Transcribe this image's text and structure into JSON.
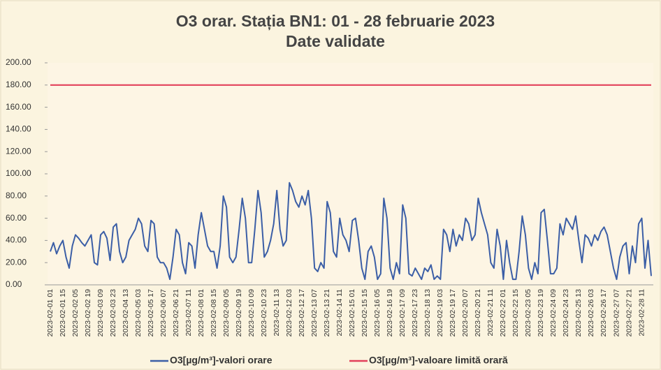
{
  "chart_data": {
    "type": "line",
    "title": "O3 orar. Stația BN1: 01 - 28 februarie 2023",
    "subtitle": "Date validate",
    "categories": [
      "2023-02-01 01",
      null,
      null,
      null,
      "2023-02-01 15",
      null,
      null,
      null,
      "2023-02-02 05",
      null,
      null,
      null,
      "2023-02-02 19",
      null,
      null,
      null,
      "2023-02-03 09",
      null,
      null,
      null,
      "2023-02-03 23",
      null,
      null,
      null,
      "2023-02-04 13",
      null,
      null,
      null,
      "2023-02-05 03",
      null,
      null,
      null,
      "2023-02-05 17",
      null,
      null,
      null,
      "2023-02-06 07",
      null,
      null,
      null,
      "2023-02-06 21",
      null,
      null,
      null,
      "2023-02-07 11",
      null,
      null,
      null,
      "2023-02-08 01",
      null,
      null,
      null,
      "2023-02-08 15",
      null,
      null,
      null,
      "2023-02-09 05",
      null,
      null,
      null,
      "2023-02-09 19",
      null,
      null,
      null,
      "2023-02-10 09",
      null,
      null,
      null,
      "2023-02-10 23",
      null,
      null,
      null,
      "2023-02-11 13",
      null,
      null,
      null,
      "2023-02-12 03",
      null,
      null,
      null,
      "2023-02-12 17",
      null,
      null,
      null,
      "2023-02-13 07",
      null,
      null,
      null,
      "2023-02-13 21",
      null,
      null,
      null,
      "2023-02-14 11",
      null,
      null,
      null,
      "2023-02-15 01",
      null,
      null,
      null,
      "2023-02-15 15",
      null,
      null,
      null,
      "2023-02-16 05",
      null,
      null,
      null,
      "2023-02-16 19",
      null,
      null,
      null,
      "2023-02-17 09",
      null,
      null,
      null,
      "2023-02-17 23",
      null,
      null,
      null,
      "2023-02-18 13",
      null,
      null,
      null,
      "2023-02-19 03",
      null,
      null,
      null,
      "2023-02-19 17",
      null,
      null,
      null,
      "2023-02-20 07",
      null,
      null,
      null,
      "2023-02-20 21",
      null,
      null,
      null,
      "2023-02-21 11",
      null,
      null,
      null,
      "2023-02-22 01",
      null,
      null,
      null,
      "2023-02-22 15",
      null,
      null,
      null,
      "2023-02-23 05",
      null,
      null,
      null,
      "2023-02-23 19",
      null,
      null,
      null,
      "2023-02-24 09",
      null,
      null,
      null,
      "2023-02-24 23",
      null,
      null,
      null,
      "2023-02-25 13",
      null,
      null,
      null,
      "2023-02-26 03",
      null,
      null,
      null,
      "2023-02-26 17",
      null,
      null,
      null,
      "2023-02-27 07",
      null,
      null,
      null,
      "2023-02-27 21",
      null,
      null,
      null,
      "2023-02-28 11",
      null,
      null,
      null
    ],
    "series": [
      {
        "name": "O3[µg/m³]-valori orare",
        "color": "#3b5ea6",
        "values": [
          30,
          38,
          28,
          35,
          40,
          25,
          15,
          35,
          45,
          42,
          38,
          35,
          40,
          45,
          20,
          18,
          45,
          48,
          42,
          22,
          52,
          55,
          30,
          20,
          25,
          40,
          45,
          50,
          60,
          55,
          35,
          30,
          58,
          55,
          25,
          20,
          20,
          15,
          5,
          25,
          50,
          45,
          20,
          10,
          38,
          35,
          15,
          45,
          65,
          50,
          35,
          30,
          30,
          15,
          35,
          80,
          70,
          25,
          20,
          25,
          50,
          78,
          60,
          20,
          20,
          50,
          85,
          65,
          25,
          30,
          40,
          55,
          85,
          50,
          35,
          40,
          92,
          85,
          75,
          70,
          80,
          72,
          85,
          60,
          15,
          12,
          20,
          15,
          75,
          65,
          30,
          25,
          60,
          45,
          40,
          30,
          58,
          60,
          40,
          15,
          5,
          30,
          35,
          25,
          5,
          10,
          78,
          60,
          15,
          5,
          20,
          10,
          72,
          60,
          10,
          8,
          15,
          10,
          5,
          15,
          12,
          18,
          5,
          8,
          5,
          50,
          45,
          30,
          50,
          35,
          45,
          40,
          60,
          55,
          40,
          45,
          78,
          65,
          55,
          45,
          20,
          15,
          50,
          35,
          5,
          40,
          20,
          5,
          5,
          30,
          62,
          45,
          15,
          5,
          20,
          10,
          65,
          68,
          40,
          10,
          10,
          15,
          55,
          45,
          60,
          55,
          50,
          62,
          40,
          20,
          45,
          42,
          35,
          45,
          40,
          48,
          52,
          45,
          30,
          15,
          5,
          25,
          35,
          38,
          10,
          35,
          20,
          55,
          60,
          15,
          40,
          8
        ]
      },
      {
        "name": "O3[µg/m³]-valoare limită orară",
        "color": "#e2405a",
        "values": [
          180,
          180,
          180,
          180,
          180,
          180,
          180,
          180,
          180,
          180,
          180,
          180,
          180,
          180,
          180,
          180,
          180,
          180,
          180,
          180,
          180,
          180,
          180,
          180,
          180,
          180,
          180,
          180,
          180,
          180,
          180,
          180,
          180,
          180,
          180,
          180,
          180,
          180,
          180,
          180,
          180,
          180,
          180,
          180,
          180,
          180,
          180,
          180,
          180,
          180,
          180,
          180,
          180,
          180,
          180,
          180,
          180,
          180,
          180,
          180,
          180,
          180,
          180,
          180,
          180,
          180,
          180,
          180,
          180,
          180,
          180,
          180,
          180,
          180,
          180,
          180,
          180,
          180,
          180,
          180,
          180,
          180,
          180,
          180,
          180,
          180,
          180,
          180,
          180,
          180,
          180,
          180,
          180,
          180,
          180,
          180,
          180,
          180,
          180,
          180,
          180,
          180,
          180,
          180,
          180,
          180,
          180,
          180,
          180,
          180,
          180,
          180,
          180,
          180,
          180,
          180,
          180,
          180,
          180,
          180,
          180,
          180,
          180,
          180,
          180,
          180,
          180,
          180,
          180,
          180,
          180,
          180,
          180,
          180,
          180,
          180,
          180,
          180,
          180,
          180,
          180,
          180,
          180,
          180,
          180,
          180,
          180,
          180,
          180,
          180,
          180,
          180,
          180,
          180,
          180,
          180,
          180,
          180,
          180,
          180,
          180,
          180,
          180,
          180,
          180,
          180,
          180,
          180,
          180,
          180,
          180,
          180,
          180,
          180,
          180,
          180,
          180,
          180,
          180,
          180,
          180,
          180,
          180,
          180,
          180,
          180,
          180,
          180,
          180,
          180,
          180,
          180
        ]
      }
    ],
    "ylim": [
      0,
      200
    ],
    "yticks": [
      {
        "value": 0,
        "label": "0.00"
      },
      {
        "value": 20,
        "label": "20.00"
      },
      {
        "value": 40,
        "label": "40.00"
      },
      {
        "value": 60,
        "label": "60.00"
      },
      {
        "value": 80,
        "label": "80.00"
      },
      {
        "value": 100,
        "label": "100.00"
      },
      {
        "value": 120,
        "label": "120.00"
      },
      {
        "value": 140,
        "label": "140.00"
      },
      {
        "value": 160,
        "label": "160.00"
      },
      {
        "value": 180,
        "label": "180.00"
      },
      {
        "value": 200,
        "label": "200.00"
      }
    ],
    "legend": "bottom"
  }
}
